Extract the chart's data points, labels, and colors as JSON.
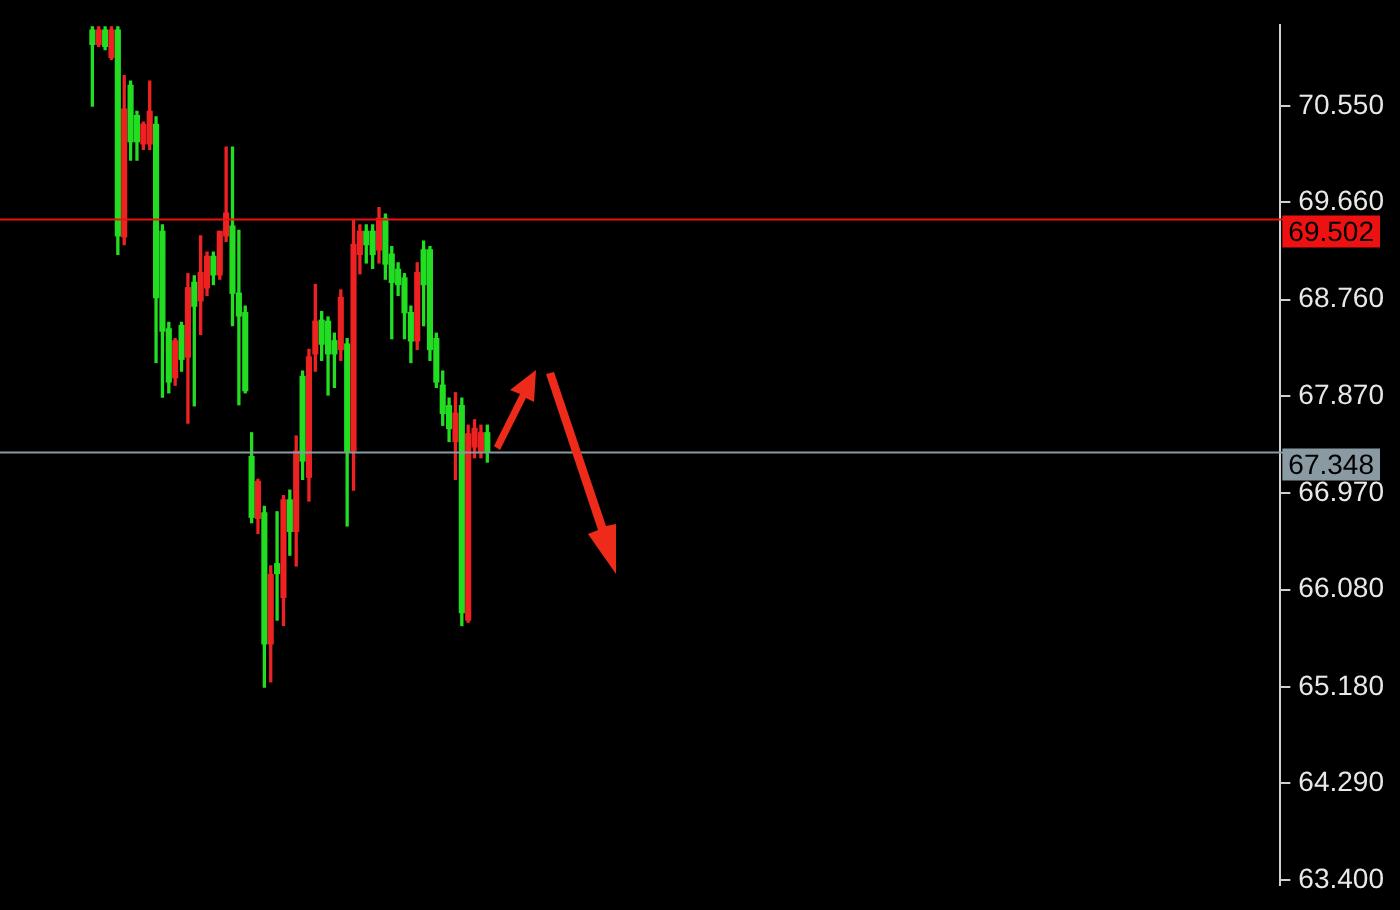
{
  "chart_data": {
    "type": "candlestick",
    "categories": [
      null,
      null,
      null,
      null,
      null,
      null,
      null,
      null,
      null,
      null,
      null,
      null,
      null,
      null,
      null,
      null,
      null,
      null,
      null,
      null,
      null,
      null,
      null,
      null,
      null,
      null,
      null,
      null,
      null,
      null,
      null,
      null,
      null,
      null,
      null,
      null,
      null,
      null,
      null,
      null,
      null,
      null,
      null,
      null,
      null,
      null,
      null,
      null,
      null,
      null,
      null,
      null,
      null,
      null,
      null,
      null,
      null,
      null,
      null,
      null,
      null,
      null,
      null,
      null,
      null,
      null,
      null,
      null,
      null,
      null,
      null,
      null,
      null,
      null,
      null,
      null,
      null,
      null,
      null,
      null,
      null,
      null,
      null,
      null,
      null,
      null,
      null,
      null,
      null,
      null,
      null,
      null,
      null,
      null,
      null,
      null,
      null,
      null,
      null,
      null,
      null,
      null,
      null,
      null,
      null,
      null,
      null,
      null,
      null,
      null,
      null,
      null,
      null,
      null,
      null,
      null,
      null,
      null,
      null,
      null,
      null,
      null,
      null,
      null,
      null,
      null,
      null,
      null,
      null,
      null,
      null,
      null,
      null,
      null,
      null,
      null,
      null,
      null,
      null,
      null,
      null,
      null,
      null,
      null,
      null,
      null,
      null,
      null,
      null,
      null,
      null,
      null,
      null,
      null,
      null,
      null,
      null,
      null,
      null,
      null,
      null,
      null,
      null,
      null,
      null,
      null,
      null,
      null,
      null,
      null,
      null,
      null,
      null,
      null,
      null,
      null,
      null,
      null,
      null,
      null,
      null,
      null,
      null,
      null,
      null,
      null,
      null,
      null,
      null,
      null,
      null,
      null,
      null,
      null,
      null,
      null,
      null,
      null,
      null,
      null,
      null
    ],
    "ohlc": [
      null,
      null,
      null,
      null,
      null,
      null,
      null,
      null,
      null,
      null,
      null,
      null,
      null,
      null,
      [
        71.25,
        71.28,
        70.55,
        71.12
      ],
      [
        71.12,
        71.28,
        71.1,
        71.25
      ],
      [
        71.25,
        71.28,
        71.07,
        71.1
      ],
      [
        71.0,
        71.28,
        70.98,
        71.25
      ],
      [
        71.25,
        71.28,
        69.18,
        69.35
      ],
      [
        69.34,
        70.83,
        69.27,
        70.52
      ],
      [
        70.74,
        70.78,
        70.05,
        70.22
      ],
      [
        70.46,
        70.5,
        70.05,
        70.22
      ],
      [
        70.2,
        70.4,
        70.15,
        70.38
      ],
      [
        70.2,
        70.78,
        70.15,
        70.5
      ],
      [
        70.38,
        70.45,
        68.18,
        68.78
      ],
      [
        69.39,
        69.45,
        67.86,
        68.47
      ],
      [
        68.49,
        68.55,
        67.9,
        68.0
      ],
      [
        68.04,
        68.4,
        67.97,
        68.38
      ],
      [
        68.52,
        68.55,
        68.1,
        68.21
      ],
      [
        68.23,
        69.0,
        67.62,
        68.87
      ],
      [
        68.92,
        68.98,
        67.78,
        68.7
      ],
      [
        68.75,
        69.35,
        68.44,
        69.01
      ],
      [
        68.87,
        69.2,
        68.8,
        69.16
      ],
      [
        69.16,
        69.2,
        68.9,
        68.99
      ],
      [
        68.99,
        69.39,
        68.95,
        69.39
      ],
      [
        69.35,
        70.17,
        69.3,
        69.56
      ],
      [
        69.44,
        70.17,
        68.52,
        68.82
      ],
      [
        68.82,
        69.4,
        67.79,
        68.61
      ],
      [
        68.64,
        68.7,
        67.9,
        67.92
      ],
      [
        67.31,
        67.53,
        66.7,
        66.75
      ],
      [
        66.74,
        67.1,
        66.6,
        67.08
      ],
      [
        66.79,
        66.85,
        65.18,
        65.58
      ],
      [
        65.58,
        66.3,
        65.23,
        66.22
      ],
      [
        66.32,
        66.8,
        65.8,
        66.23
      ],
      [
        66.01,
        66.95,
        65.75,
        66.91
      ],
      [
        66.91,
        67.0,
        66.4,
        66.62
      ],
      [
        66.62,
        67.5,
        66.3,
        67.36
      ],
      [
        68.05,
        68.1,
        67.1,
        67.27
      ],
      [
        67.12,
        68.3,
        66.9,
        68.23
      ],
      [
        68.26,
        68.9,
        68.1,
        68.56
      ],
      [
        68.57,
        68.65,
        68.2,
        68.35
      ],
      [
        68.56,
        68.6,
        67.88,
        68.26
      ],
      [
        68.38,
        68.45,
        67.95,
        68.26
      ],
      [
        68.3,
        68.85,
        68.2,
        68.78
      ],
      [
        68.35,
        68.4,
        66.67,
        67.36
      ],
      [
        67.36,
        69.5,
        67.0,
        69.27
      ],
      [
        69.18,
        69.45,
        69.0,
        69.39
      ],
      [
        69.39,
        69.45,
        69.1,
        69.27
      ],
      [
        69.39,
        69.45,
        69.05,
        69.18
      ],
      [
        69.22,
        69.61,
        69.1,
        69.51
      ],
      [
        69.51,
        69.55,
        68.95,
        69.09
      ],
      [
        69.18,
        69.25,
        68.4,
        68.92
      ],
      [
        69.04,
        69.1,
        68.8,
        68.9
      ],
      [
        68.96,
        69.0,
        68.4,
        68.64
      ],
      [
        68.64,
        68.7,
        68.18,
        68.38
      ],
      [
        68.38,
        69.1,
        68.3,
        69.01
      ],
      [
        69.22,
        69.3,
        68.52,
        68.9
      ],
      [
        69.22,
        69.25,
        68.2,
        68.3
      ],
      [
        68.4,
        68.45,
        67.95,
        68.0
      ],
      [
        67.97,
        68.1,
        67.6,
        67.71
      ],
      [
        67.78,
        67.85,
        67.45,
        67.57
      ],
      [
        67.45,
        67.9,
        67.1,
        67.71
      ],
      [
        67.78,
        67.85,
        65.75,
        65.87
      ],
      [
        65.8,
        67.6,
        65.78,
        67.52
      ],
      [
        67.4,
        67.65,
        67.3,
        67.57
      ],
      [
        67.36,
        67.6,
        67.3,
        67.53
      ],
      [
        67.53,
        67.6,
        67.26,
        67.35
      ],
      null,
      null,
      null,
      null,
      null,
      null,
      null,
      null,
      null,
      null,
      null,
      null,
      null,
      null,
      null,
      null,
      null,
      null,
      null,
      null,
      null,
      null,
      null,
      null,
      null,
      null,
      null,
      null,
      null,
      null,
      null,
      null,
      null,
      null,
      null,
      null,
      null,
      null,
      null,
      null,
      null,
      null,
      null,
      null,
      null,
      null,
      null,
      null,
      null,
      null,
      null,
      null,
      null,
      null,
      null,
      null,
      null,
      null,
      null,
      null,
      null,
      null,
      null,
      null,
      null,
      null,
      null,
      null,
      null,
      null,
      null,
      null,
      null,
      null,
      null,
      null,
      null,
      null,
      null,
      null,
      null,
      null,
      null,
      null,
      null,
      null,
      null,
      null,
      null,
      null,
      null,
      null,
      null,
      null,
      null,
      null,
      null,
      null,
      null,
      null,
      null,
      null,
      null,
      null,
      null,
      null,
      null,
      null,
      null,
      null,
      null,
      null,
      null,
      null,
      null,
      null,
      null,
      null,
      null,
      null,
      null,
      null,
      null,
      null
    ],
    "colors": [
      null,
      null,
      null,
      null,
      null,
      null,
      null,
      null,
      null,
      null,
      null,
      null,
      null,
      null,
      "#22dd22",
      "#ee2222",
      "#22dd22",
      "#ee2222",
      "#22dd22",
      "#ee2222",
      "#22dd22",
      "#22dd22",
      "#ee2222",
      "#ee2222",
      "#22dd22",
      "#22dd22",
      "#22dd22",
      "#ee2222",
      "#22dd22",
      "#ee2222",
      "#22dd22",
      "#ee2222",
      "#ee2222",
      "#22dd22",
      "#ee2222",
      "#ee2222",
      "#22dd22",
      "#22dd22",
      "#22dd22",
      "#22dd22",
      "#ee2222",
      "#22dd22",
      "#ee2222",
      "#22dd22",
      "#ee2222",
      "#22dd22",
      "#ee2222",
      "#22dd22",
      "#ee2222",
      "#ee2222",
      "#22dd22",
      "#22dd22",
      "#22dd22",
      "#ee2222",
      "#22dd22",
      "#ee2222",
      "#ee2222",
      "#22dd22",
      "#22dd22",
      "#ee2222",
      "#22dd22",
      "#22dd22",
      "#22dd22",
      "#22dd22",
      "#22dd22",
      "#ee2222",
      "#22dd22",
      "#22dd22",
      "#22dd22",
      "#22dd22",
      "#22dd22",
      "#ee2222",
      "#22dd22",
      "#ee2222",
      "#ee2222",
      "#ee2222",
      "#22dd22",
      null,
      null,
      null,
      null,
      null,
      null,
      null,
      null,
      null,
      null,
      null,
      null,
      null,
      null,
      null,
      null,
      null,
      null,
      null,
      null,
      null,
      null,
      null,
      null,
      null,
      null,
      null,
      null,
      null,
      null,
      null,
      null,
      null,
      null,
      null,
      null,
      null,
      null,
      null,
      null,
      null,
      null,
      null,
      null,
      null,
      null,
      null,
      null,
      null,
      null,
      null,
      null,
      null,
      null,
      null,
      null,
      null,
      null,
      null,
      null,
      null,
      null,
      null,
      null,
      null,
      null,
      null,
      null,
      null,
      null,
      null,
      null,
      null,
      null,
      null,
      null,
      null,
      null,
      null,
      null,
      null,
      null,
      null,
      null,
      null,
      null,
      null,
      null,
      null,
      null,
      null,
      null,
      null,
      null,
      null,
      null,
      null,
      null,
      null,
      null,
      null,
      null,
      null,
      null,
      null,
      null,
      null,
      null,
      null,
      null,
      null,
      null,
      null,
      null,
      null,
      null,
      null,
      null,
      null,
      null,
      null,
      null,
      null,
      null
    ],
    "ylim": [
      63.35,
      71.3
    ],
    "yticks": [
      {
        "value": 63.4,
        "label": "63.400"
      },
      {
        "value": 64.29,
        "label": "64.290"
      },
      {
        "value": 65.18,
        "label": "65.180"
      },
      {
        "value": 66.08,
        "label": "66.080"
      },
      {
        "value": 66.97,
        "label": "66.970"
      },
      {
        "value": 67.87,
        "label": "67.870"
      },
      {
        "value": 68.76,
        "label": "68.760"
      },
      {
        "value": 69.66,
        "label": "69.660"
      },
      {
        "value": 70.55,
        "label": "70.550"
      }
    ],
    "ref_lines": [
      {
        "axis": "y",
        "value": 69.502,
        "label": "69.502",
        "color": "#ee1111"
      },
      {
        "axis": "y",
        "value": 67.348,
        "label": "67.348",
        "color": "#8a9aa2"
      }
    ],
    "tick_labels": "y",
    "grid": false,
    "legend": false
  }
}
